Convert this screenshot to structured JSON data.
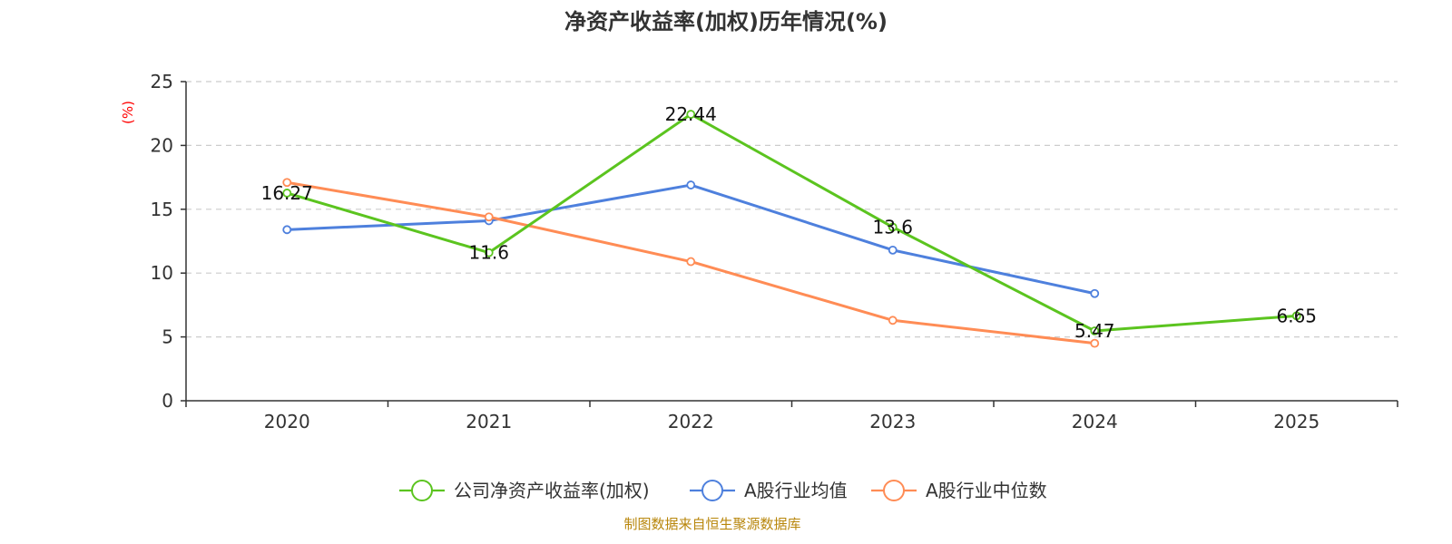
{
  "chart_data": {
    "type": "line",
    "title": "净资产收益率(加权)历年情况(%)",
    "ylabel": "(%)",
    "xlabel": "",
    "categories": [
      "2020",
      "2021",
      "2022",
      "2023",
      "2024",
      "2025"
    ],
    "ylim": [
      0,
      25
    ],
    "yticks": [
      0,
      5,
      10,
      15,
      20,
      25
    ],
    "grid": true,
    "legend_position": "bottom-center",
    "series": [
      {
        "name": "公司净资产收益率(加权)",
        "color": "#5bc41f",
        "values": [
          16.27,
          11.6,
          22.44,
          13.6,
          5.47,
          6.65
        ],
        "labels": [
          "16.27",
          "11.6",
          "22.44",
          "13.6",
          "5.47",
          "6.65"
        ],
        "show_labels": true
      },
      {
        "name": "A股行业均值",
        "color": "#4e80dd",
        "values": [
          13.4,
          14.1,
          16.9,
          11.8,
          8.4,
          null
        ],
        "show_labels": false
      },
      {
        "name": "A股行业中位数",
        "color": "#ff8c55",
        "values": [
          17.1,
          14.4,
          10.9,
          6.3,
          4.5,
          null
        ],
        "show_labels": false
      }
    ],
    "source": "制图数据来自恒生聚源数据库"
  }
}
